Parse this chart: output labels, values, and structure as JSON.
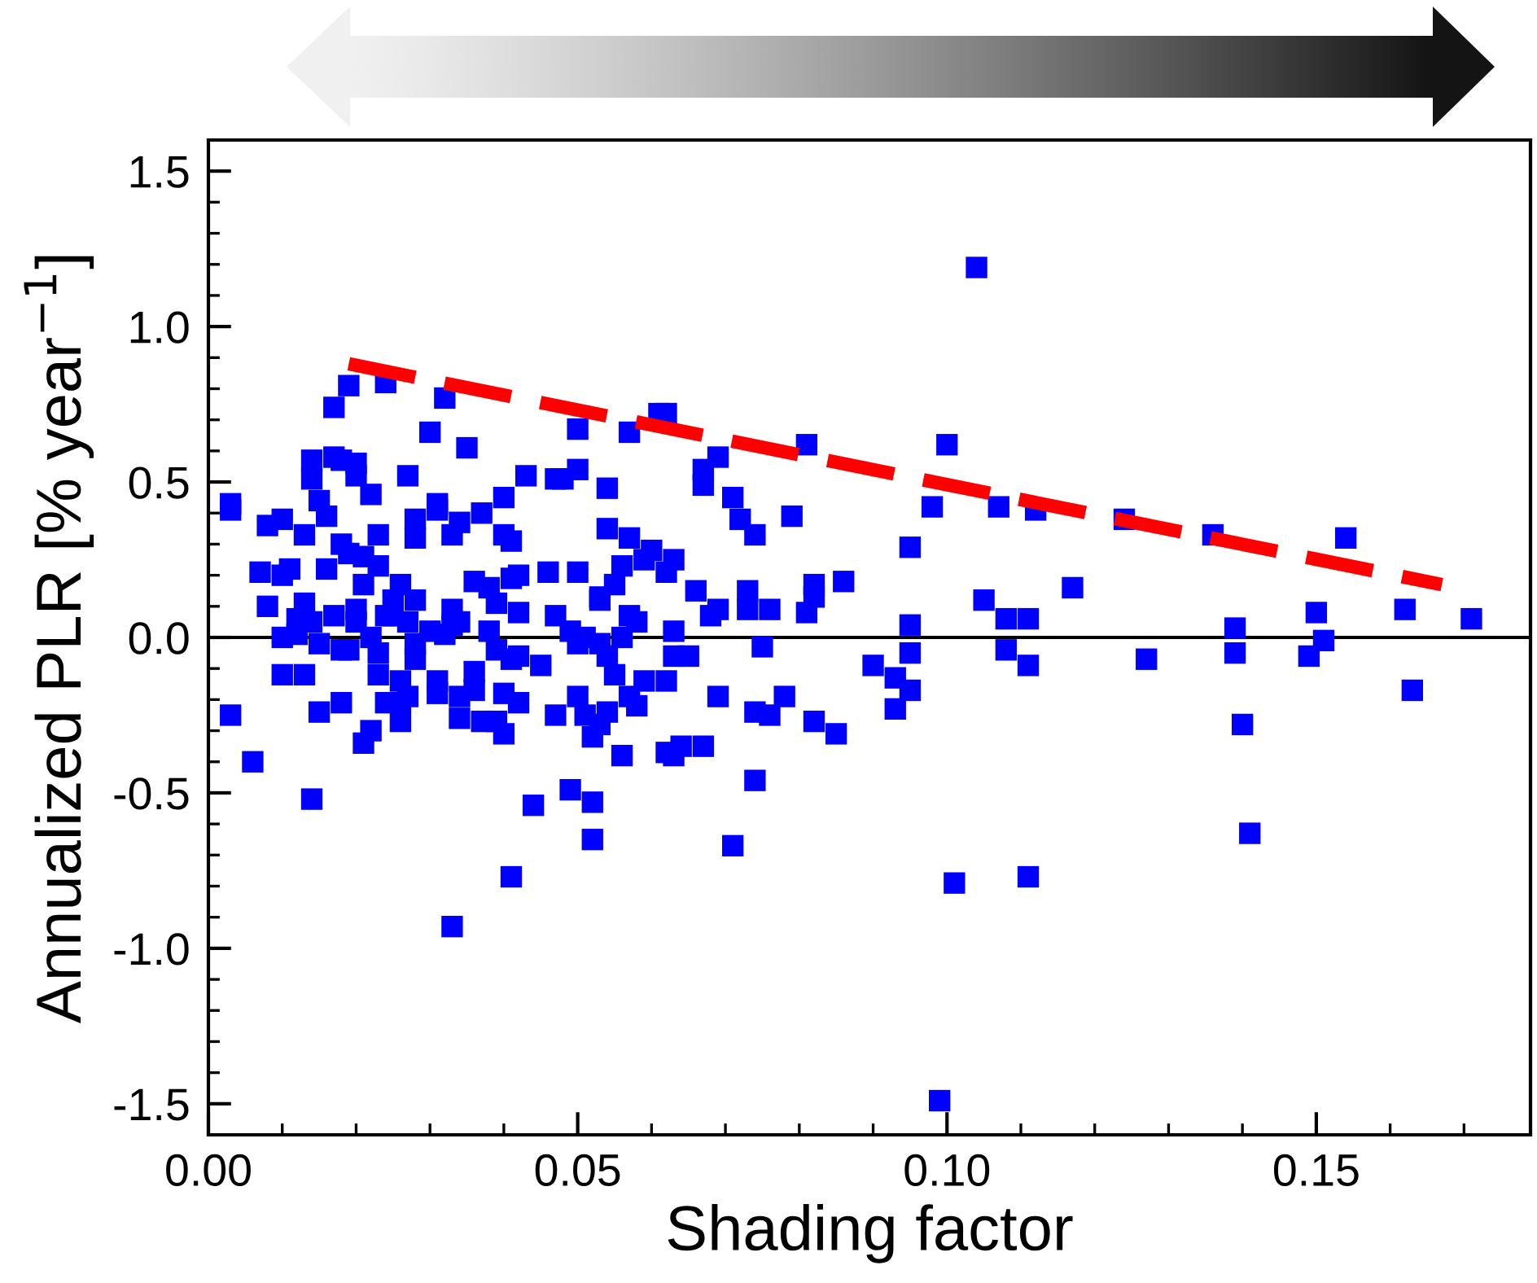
{
  "chart_data": {
    "type": "scatter",
    "xlabel": "Shading factor",
    "ylabel": "Annualized PLR [% year$^{−1}$]",
    "xlim": [
      0,
      0.179
    ],
    "ylim": [
      -1.6,
      1.6
    ],
    "xticks": [
      {
        "value": 0,
        "label": "0.00"
      },
      {
        "value": 0.01,
        "label": null
      },
      {
        "value": 0.02,
        "label": null
      },
      {
        "value": 0.03,
        "label": null
      },
      {
        "value": 0.04,
        "label": null
      },
      {
        "value": 0.05,
        "label": "0.05"
      },
      {
        "value": 0.06,
        "label": null
      },
      {
        "value": 0.07,
        "label": null
      },
      {
        "value": 0.08,
        "label": null
      },
      {
        "value": 0.09,
        "label": null
      },
      {
        "value": 0.1,
        "label": "0.10"
      },
      {
        "value": 0.11,
        "label": null
      },
      {
        "value": 0.12,
        "label": null
      },
      {
        "value": 0.13,
        "label": null
      },
      {
        "value": 0.14,
        "label": null
      },
      {
        "value": 0.15,
        "label": "0.15"
      },
      {
        "value": 0.16,
        "label": null
      },
      {
        "value": 0.17,
        "label": null
      }
    ],
    "yticks": [
      {
        "value": -1.5,
        "label": "-1.5"
      },
      {
        "value": -1.4,
        "label": null
      },
      {
        "value": -1.3,
        "label": null
      },
      {
        "value": -1.2,
        "label": null
      },
      {
        "value": -1.1,
        "label": null
      },
      {
        "value": -1.0,
        "label": "-1.0"
      },
      {
        "value": -0.9,
        "label": null
      },
      {
        "value": -0.8,
        "label": null
      },
      {
        "value": -0.7,
        "label": null
      },
      {
        "value": -0.6,
        "label": null
      },
      {
        "value": -0.5,
        "label": "-0.5"
      },
      {
        "value": -0.4,
        "label": null
      },
      {
        "value": -0.3,
        "label": null
      },
      {
        "value": -0.2,
        "label": null
      },
      {
        "value": -0.1,
        "label": null
      },
      {
        "value": 0,
        "label": "0.0"
      },
      {
        "value": 0.1,
        "label": null
      },
      {
        "value": 0.2,
        "label": null
      },
      {
        "value": 0.3,
        "label": null
      },
      {
        "value": 0.4,
        "label": null
      },
      {
        "value": 0.5,
        "label": "0.5"
      },
      {
        "value": 0.6,
        "label": null
      },
      {
        "value": 0.7,
        "label": null
      },
      {
        "value": 0.8,
        "label": null
      },
      {
        "value": 0.9,
        "label": null
      },
      {
        "value": 1.0,
        "label": "1.0"
      },
      {
        "value": 1.1,
        "label": null
      },
      {
        "value": 1.2,
        "label": null
      },
      {
        "value": 1.3,
        "label": null
      },
      {
        "value": 1.4,
        "label": null
      },
      {
        "value": 1.5,
        "label": "1.5"
      }
    ],
    "grid": false,
    "ref_lines": [
      {
        "axis": "y",
        "value": 0,
        "color": "#000000",
        "line_style": "solid"
      }
    ],
    "series": [
      {
        "color": "#0000ff",
        "marker": "square",
        "x": [
          0.003,
          0.003,
          0.003,
          0.006,
          0.008,
          0.008,
          0.01,
          0.011,
          0.01,
          0.01,
          0.007,
          0.013,
          0.01,
          0.012,
          0.012,
          0.013,
          0.014,
          0.015,
          0.015,
          0.013,
          0.016,
          0.017,
          0.018,
          0.019,
          0.018,
          0.018,
          0.019,
          0.016,
          0.015,
          0.014,
          0.014,
          0.017,
          0.018,
          0.02,
          0.02,
          0.022,
          0.017,
          0.019,
          0.024,
          0.032,
          0.03,
          0.035,
          0.027,
          0.023,
          0.021,
          0.023,
          0.021,
          0.02,
          0.02,
          0.022,
          0.023,
          0.023,
          0.025,
          0.024,
          0.026,
          0.028,
          0.025,
          0.027,
          0.028,
          0.028,
          0.03,
          0.032,
          0.033,
          0.033,
          0.034,
          0.028,
          0.028,
          0.031,
          0.031,
          0.033,
          0.034,
          0.037,
          0.04,
          0.04,
          0.041,
          0.036,
          0.038,
          0.039,
          0.041,
          0.042,
          0.042,
          0.038,
          0.039,
          0.041,
          0.042,
          0.045,
          0.036,
          0.04,
          0.042,
          0.043,
          0.047,
          0.048,
          0.05,
          0.05,
          0.046,
          0.05,
          0.053,
          0.047,
          0.049,
          0.051,
          0.05,
          0.047,
          0.05,
          0.026,
          0.031,
          0.027,
          0.026,
          0.034,
          0.036,
          0.014,
          0.022,
          0.021,
          0.024,
          0.026,
          0.031,
          0.034,
          0.037,
          0.039,
          0.04,
          0.041,
          0.033,
          0.044,
          0.049,
          0.052,
          0.052,
          0.051,
          0.052,
          0.104,
          0.061,
          0.062,
          0.057,
          0.081,
          0.1,
          0.069,
          0.067,
          0.067,
          0.054,
          0.071,
          0.072,
          0.074,
          0.079,
          0.098,
          0.107,
          0.112,
          0.054,
          0.057,
          0.06,
          0.059,
          0.063,
          0.062,
          0.056,
          0.055,
          0.053,
          0.066,
          0.069,
          0.068,
          0.073,
          0.073,
          0.076,
          0.082,
          0.082,
          0.081,
          0.086,
          0.095,
          0.105,
          0.108,
          0.111,
          0.117,
          0.095,
          0.057,
          0.058,
          0.063,
          0.056,
          0.053,
          0.075,
          0.063,
          0.065,
          0.054,
          0.095,
          0.09,
          0.093,
          0.095,
          0.093,
          0.108,
          0.111,
          0.055,
          0.059,
          0.062,
          0.057,
          0.058,
          0.054,
          0.069,
          0.074,
          0.076,
          0.078,
          0.082,
          0.085,
          0.056,
          0.062,
          0.063,
          0.064,
          0.067,
          0.074,
          0.071,
          0.101,
          0.111,
          0.099,
          0.053,
          0.124,
          0.136,
          0.154,
          0.15,
          0.162,
          0.171,
          0.139,
          0.151,
          0.127,
          0.139,
          0.149,
          0.163,
          0.14,
          0.141
        ],
        "values": [
          0.41,
          0.43,
          -0.25,
          -0.4,
          0.36,
          0.1,
          -0.12,
          0.22,
          0.38,
          0.2,
          0.21,
          -0.12,
          0.0,
          0.01,
          0.06,
          0.11,
          0.05,
          -0.02,
          -0.24,
          0.33,
          0.22,
          0.07,
          -0.04,
          -0.04,
          -0.21,
          0.3,
          0.27,
          0.39,
          0.44,
          0.51,
          0.57,
          0.58,
          0.57,
          0.56,
          0.52,
          0.46,
          0.74,
          0.81,
          0.82,
          0.77,
          0.66,
          0.61,
          0.52,
          0.33,
          0.26,
          0.23,
          0.17,
          0.09,
          0.05,
          0.0,
          -0.05,
          -0.12,
          0.12,
          0.07,
          0.17,
          0.12,
          0.07,
          0.05,
          -0.02,
          -0.07,
          0.02,
          0.01,
          0.09,
          0.04,
          0.05,
          0.32,
          0.38,
          0.41,
          0.43,
          0.33,
          0.37,
          0.4,
          0.45,
          0.33,
          0.31,
          0.18,
          0.16,
          0.11,
          0.19,
          0.2,
          0.08,
          0.02,
          -0.04,
          -0.07,
          -0.06,
          -0.09,
          -0.11,
          -0.18,
          -0.21,
          0.52,
          0.51,
          0.51,
          0.54,
          0.67,
          0.21,
          0.21,
          0.13,
          0.07,
          0.02,
          0.0,
          -0.02,
          -0.25,
          -0.19,
          -0.14,
          -0.14,
          -0.19,
          -0.21,
          -0.19,
          -0.17,
          -0.52,
          -0.3,
          -0.34,
          -0.21,
          -0.27,
          -0.18,
          -0.26,
          -0.27,
          -0.27,
          -0.31,
          -0.77,
          -0.93,
          -0.54,
          -0.49,
          -0.65,
          -0.53,
          -0.25,
          -0.32,
          1.19,
          0.72,
          0.72,
          0.66,
          0.62,
          0.62,
          0.58,
          0.54,
          0.49,
          0.48,
          0.45,
          0.38,
          0.33,
          0.39,
          0.42,
          0.42,
          0.41,
          0.35,
          0.32,
          0.28,
          0.25,
          0.25,
          0.21,
          0.23,
          0.17,
          0.12,
          0.15,
          0.09,
          0.07,
          0.15,
          0.09,
          0.09,
          0.17,
          0.13,
          0.08,
          0.18,
          0.29,
          0.12,
          0.06,
          0.06,
          0.16,
          0.04,
          0.07,
          0.05,
          0.02,
          0.0,
          -0.02,
          -0.03,
          -0.06,
          -0.06,
          -0.06,
          -0.05,
          -0.09,
          -0.13,
          -0.17,
          -0.23,
          -0.04,
          -0.09,
          -0.12,
          -0.14,
          -0.14,
          -0.19,
          -0.22,
          -0.24,
          -0.19,
          -0.24,
          -0.25,
          -0.19,
          -0.27,
          -0.31,
          -0.38,
          -0.37,
          -0.38,
          -0.35,
          -0.35,
          -0.46,
          -0.67,
          -0.79,
          -0.77,
          -1.49,
          -0.28,
          0.38,
          0.33,
          0.32,
          0.08,
          0.09,
          0.06,
          0.03,
          -0.01,
          -0.07,
          -0.05,
          -0.06,
          -0.17,
          -0.28,
          -0.63
        ]
      },
      {
        "type": "line",
        "color": "#ff0000",
        "line_style": "dashed",
        "marker": "none",
        "x": [
          0.019,
          0.167
        ],
        "values": [
          0.88,
          0.17
        ]
      }
    ]
  }
}
